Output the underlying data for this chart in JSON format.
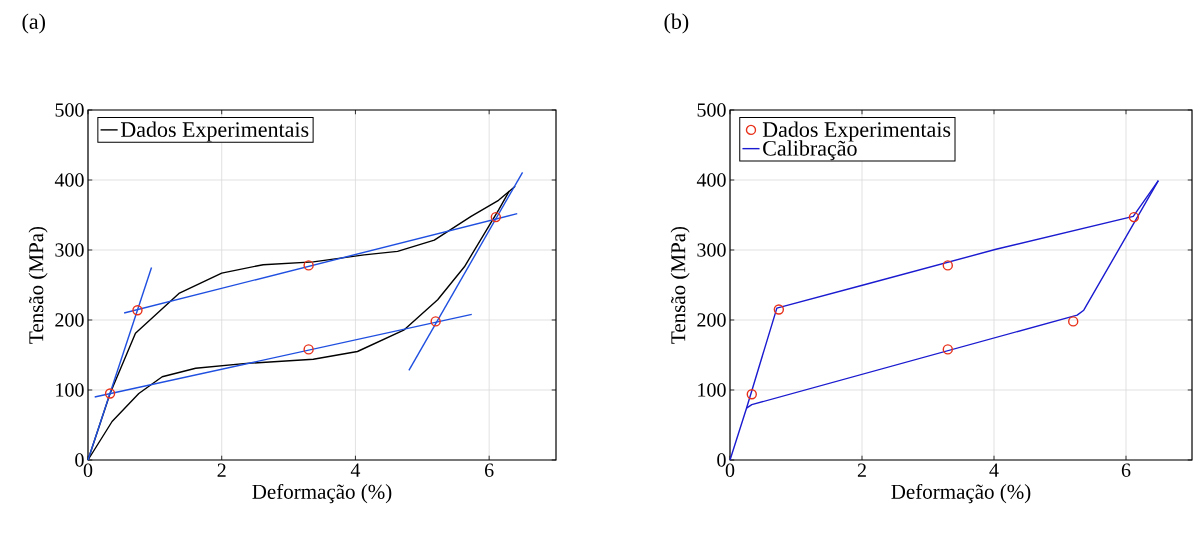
{
  "chart_data": [
    {
      "type": "line",
      "title": "(a)",
      "xlabel": "Deformação (%)",
      "ylabel": "Tensão (MPa)",
      "xlim": [
        0,
        7
      ],
      "ylim": [
        0,
        500
      ],
      "xticks": [
        0,
        2,
        4,
        6
      ],
      "yticks": [
        0,
        100,
        200,
        300,
        400,
        500
      ],
      "grid": true,
      "legend": "top left",
      "series": [
        {
          "name": "Dados Experimentais",
          "color": "#000000",
          "line_style": "solid",
          "x": [
            0,
            0.33,
            0.71,
            1.36,
            2.0,
            2.62,
            3.37,
            4.13,
            4.63,
            5.18,
            5.73,
            6.14,
            6.39
          ],
          "values": [
            0,
            95,
            181,
            238,
            267,
            279,
            283,
            293,
            298,
            314,
            348,
            371,
            391
          ]
        },
        {
          "color": "#000000",
          "line_style": "solid",
          "x": [
            0,
            0.36,
            0.76,
            1.11,
            1.61,
            2.37,
            3.37,
            4.03,
            4.73,
            5.23,
            5.63,
            6.14,
            6.3
          ],
          "values": [
            0,
            55,
            95,
            119,
            131,
            138,
            144,
            155,
            186,
            229,
            276,
            357,
            384
          ]
        },
        {
          "color": "#1f4fe0",
          "line_style": "solid",
          "x": [
            0,
            0.95
          ],
          "values": [
            0,
            275
          ]
        },
        {
          "color": "#1f4fe0",
          "line_style": "solid",
          "x": [
            0.54,
            6.42
          ],
          "values": [
            210,
            352
          ]
        },
        {
          "color": "#1f4fe0",
          "line_style": "solid",
          "x": [
            0.1,
            5.74
          ],
          "values": [
            90,
            208
          ]
        },
        {
          "color": "#1f4fe0",
          "line_style": "solid",
          "x": [
            4.8,
            6.5
          ],
          "values": [
            128,
            411
          ]
        },
        {
          "type": "scatter",
          "color": "#e8311a",
          "marker": "circle",
          "x": [
            0.33,
            0.74,
            3.3,
            3.3,
            5.2,
            6.1
          ],
          "values": [
            95,
            214,
            158,
            278,
            198,
            347
          ]
        }
      ]
    },
    {
      "type": "line",
      "title": "(b)",
      "xlabel": "Deformação (%)",
      "ylabel": "Tensão (MPa)",
      "xlim": [
        0,
        7
      ],
      "ylim": [
        0,
        500
      ],
      "xticks": [
        0,
        2,
        4,
        6
      ],
      "yticks": [
        0,
        100,
        200,
        300,
        400,
        500
      ],
      "grid": true,
      "legend": "top left",
      "series": [
        {
          "name": "Dados Experimentais",
          "type": "scatter",
          "color": "#e8311a",
          "marker": "circle",
          "x": [
            0.33,
            0.74,
            3.3,
            3.3,
            5.2,
            6.12
          ],
          "values": [
            94,
            215,
            158,
            278,
            198,
            347
          ]
        },
        {
          "name": "Calibração",
          "color": "#1a1ad0",
          "line_style": "solid",
          "x": [
            0,
            0.25,
            0.71,
            2.02,
            4.03,
            6.11,
            6.49
          ],
          "values": [
            0,
            74,
            217,
            250,
            301,
            348,
            399
          ]
        },
        {
          "color": "#1a1ad0",
          "line_style": "solid",
          "x": [
            0.25,
            0.33,
            5.26,
            5.36,
            6.49
          ],
          "values": [
            74,
            79,
            207,
            214,
            399
          ]
        }
      ]
    }
  ]
}
